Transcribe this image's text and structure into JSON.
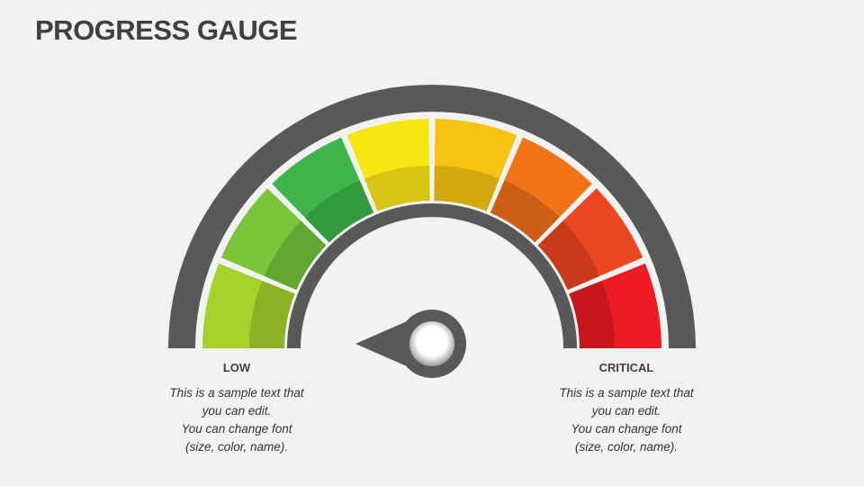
{
  "title": "PROGRESS GAUGE",
  "gauge": {
    "needle_value": 0,
    "segments": [
      {
        "color": "#a4d22a",
        "shade": "#8cb026"
      },
      {
        "color": "#7ac43a",
        "shade": "#64a632"
      },
      {
        "color": "#3db54a",
        "shade": "#349a3e"
      },
      {
        "color": "#f7e614",
        "shade": "#d6c612"
      },
      {
        "color": "#f5c412",
        "shade": "#d4a80f"
      },
      {
        "color": "#f07318",
        "shade": "#cc5e16"
      },
      {
        "color": "#ea461f",
        "shade": "#c93a1b"
      },
      {
        "color": "#ed1c24",
        "shade": "#c8161d"
      }
    ],
    "frame_color": "#595959"
  },
  "low": {
    "label": "LOW",
    "lines": [
      "This is a sample text that",
      "you can edit.",
      "You can change font",
      "(size, color, name)."
    ]
  },
  "critical": {
    "label": "CRITICAL",
    "lines": [
      "This is a sample text that",
      "you can edit.",
      "You can change font",
      "(size, color, name)."
    ]
  }
}
